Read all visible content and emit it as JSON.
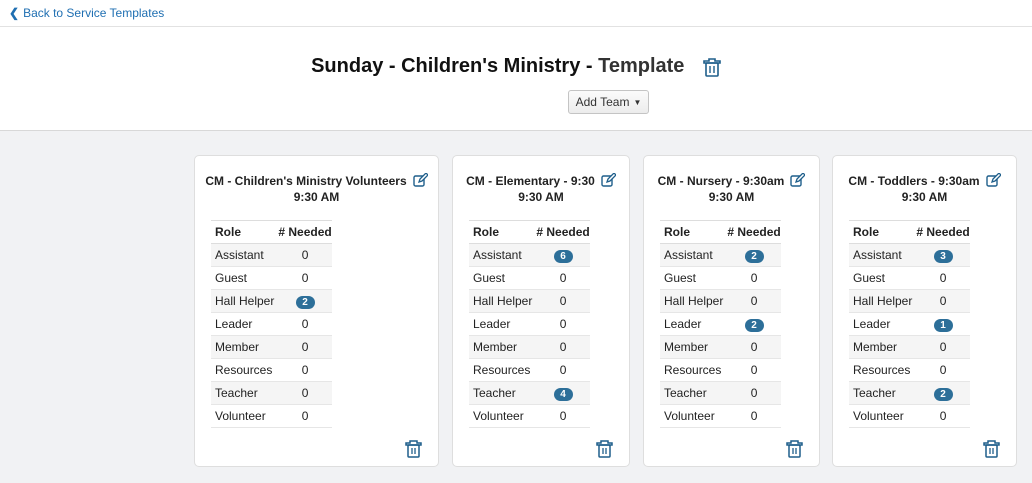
{
  "nav": {
    "back_label": "Back to Service Templates"
  },
  "header": {
    "title_main": "Sunday - Children's Ministry - ",
    "title_suffix": "Template",
    "add_team_label": "Add Team"
  },
  "colors": {
    "link": "#1f6fb2",
    "badge": "#2d6f99",
    "background": "#f1f2f4"
  },
  "icons": {
    "back": "chevron-left-icon",
    "delete": "trash-icon",
    "edit": "edit-icon",
    "dropdown": "caret-down-icon"
  },
  "cards": [
    {
      "title": "CM - Children's Ministry Volunteers",
      "time": "9:30 AM",
      "col_role": "Role",
      "col_needed": "# Needed",
      "rows": [
        {
          "role": "Assistant",
          "needed": "0",
          "badge": false
        },
        {
          "role": "Guest",
          "needed": "0",
          "badge": false
        },
        {
          "role": "Hall Helper",
          "needed": "2",
          "badge": true
        },
        {
          "role": "Leader",
          "needed": "0",
          "badge": false
        },
        {
          "role": "Member",
          "needed": "0",
          "badge": false
        },
        {
          "role": "Resources",
          "needed": "0",
          "badge": false
        },
        {
          "role": "Teacher",
          "needed": "0",
          "badge": false
        },
        {
          "role": "Volunteer",
          "needed": "0",
          "badge": false
        }
      ]
    },
    {
      "title": "CM - Elementary - 9:30",
      "time": "9:30 AM",
      "col_role": "Role",
      "col_needed": "# Needed",
      "rows": [
        {
          "role": "Assistant",
          "needed": "6",
          "badge": true
        },
        {
          "role": "Guest",
          "needed": "0",
          "badge": false
        },
        {
          "role": "Hall Helper",
          "needed": "0",
          "badge": false
        },
        {
          "role": "Leader",
          "needed": "0",
          "badge": false
        },
        {
          "role": "Member",
          "needed": "0",
          "badge": false
        },
        {
          "role": "Resources",
          "needed": "0",
          "badge": false
        },
        {
          "role": "Teacher",
          "needed": "4",
          "badge": true
        },
        {
          "role": "Volunteer",
          "needed": "0",
          "badge": false
        }
      ]
    },
    {
      "title": "CM - Nursery - 9:30am",
      "time": "9:30 AM",
      "col_role": "Role",
      "col_needed": "# Needed",
      "rows": [
        {
          "role": "Assistant",
          "needed": "2",
          "badge": true
        },
        {
          "role": "Guest",
          "needed": "0",
          "badge": false
        },
        {
          "role": "Hall Helper",
          "needed": "0",
          "badge": false
        },
        {
          "role": "Leader",
          "needed": "2",
          "badge": true
        },
        {
          "role": "Member",
          "needed": "0",
          "badge": false
        },
        {
          "role": "Resources",
          "needed": "0",
          "badge": false
        },
        {
          "role": "Teacher",
          "needed": "0",
          "badge": false
        },
        {
          "role": "Volunteer",
          "needed": "0",
          "badge": false
        }
      ]
    },
    {
      "title": "CM - Toddlers - 9:30am",
      "time": "9:30 AM",
      "col_role": "Role",
      "col_needed": "# Needed",
      "rows": [
        {
          "role": "Assistant",
          "needed": "3",
          "badge": true
        },
        {
          "role": "Guest",
          "needed": "0",
          "badge": false
        },
        {
          "role": "Hall Helper",
          "needed": "0",
          "badge": false
        },
        {
          "role": "Leader",
          "needed": "1",
          "badge": true
        },
        {
          "role": "Member",
          "needed": "0",
          "badge": false
        },
        {
          "role": "Resources",
          "needed": "0",
          "badge": false
        },
        {
          "role": "Teacher",
          "needed": "2",
          "badge": true
        },
        {
          "role": "Volunteer",
          "needed": "0",
          "badge": false
        }
      ]
    }
  ]
}
